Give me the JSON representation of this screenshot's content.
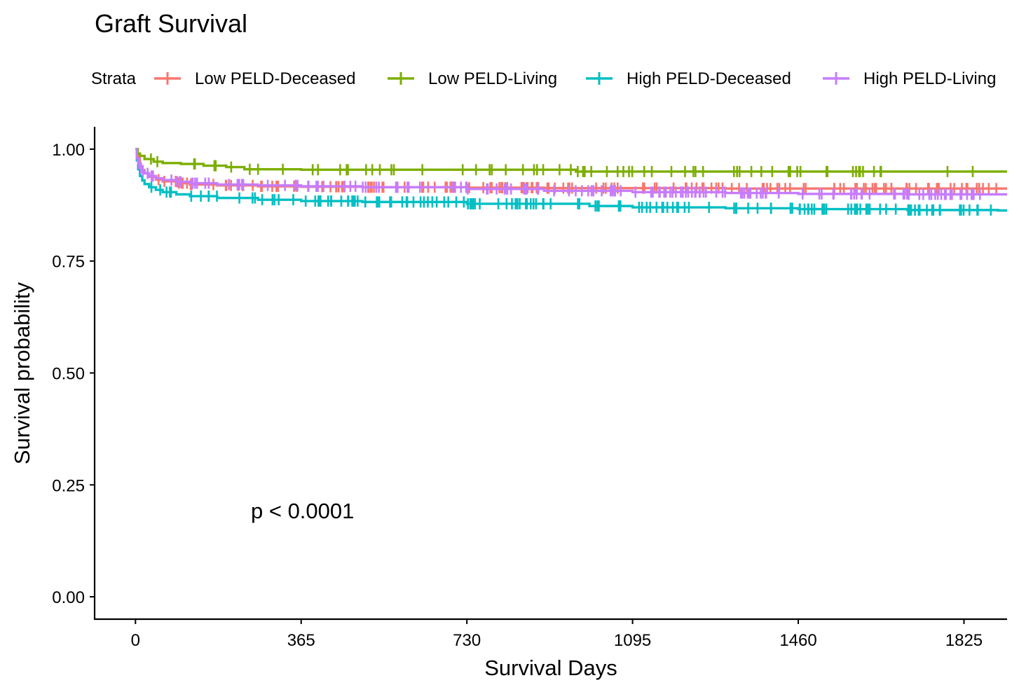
{
  "chart_data": {
    "type": "line",
    "subtype": "kaplan-meier survival curve",
    "title": "Graft Survival",
    "xlabel": "Survival Days",
    "ylabel": "Survival probability",
    "xlim": [
      -90,
      1920
    ],
    "ylim": [
      -0.05,
      1.05
    ],
    "x_ticks": [
      0,
      365,
      730,
      1095,
      1460,
      1825
    ],
    "y_ticks": [
      0.0,
      0.25,
      0.5,
      0.75,
      1.0
    ],
    "y_tick_labels": [
      "0.00",
      "0.25",
      "0.50",
      "0.75",
      "1.00"
    ],
    "grid": false,
    "legend": {
      "title": "Strata",
      "placement": "top",
      "entries": [
        "Low PELD-Deceased",
        "Low PELD-Living",
        "High PELD-Deceased",
        "High PELD-Living"
      ]
    },
    "annotations": [
      {
        "text": "p < 0.0001",
        "x": 390,
        "y": 0.19
      }
    ],
    "series": [
      {
        "name": "Low PELD-Deceased",
        "color": "#F8766D",
        "x": [
          0,
          3,
          6,
          10,
          15,
          20,
          30,
          45,
          60,
          90,
          120,
          180,
          270,
          365,
          500,
          730,
          900,
          1095,
          1300,
          1460,
          1700,
          1900
        ],
        "y": [
          1.0,
          0.985,
          0.972,
          0.962,
          0.953,
          0.946,
          0.938,
          0.932,
          0.928,
          0.924,
          0.921,
          0.919,
          0.917,
          0.916,
          0.915,
          0.914,
          0.913,
          0.913,
          0.912,
          0.912,
          0.912,
          0.912
        ]
      },
      {
        "name": "Low PELD-Living",
        "color": "#7CAE00",
        "x": [
          0,
          5,
          10,
          20,
          40,
          60,
          100,
          150,
          200,
          240,
          365,
          600,
          730,
          970,
          1095,
          1460,
          1900
        ],
        "y": [
          1.0,
          0.99,
          0.985,
          0.978,
          0.972,
          0.969,
          0.967,
          0.963,
          0.96,
          0.955,
          0.954,
          0.954,
          0.954,
          0.95,
          0.95,
          0.95,
          0.95
        ]
      },
      {
        "name": "High PELD-Deceased",
        "color": "#00BFC4",
        "x": [
          0,
          3,
          6,
          10,
          15,
          20,
          30,
          45,
          60,
          90,
          120,
          180,
          270,
          365,
          500,
          730,
          1000,
          1095,
          1300,
          1460,
          1700,
          1900
        ],
        "y": [
          1.0,
          0.975,
          0.955,
          0.94,
          0.93,
          0.922,
          0.915,
          0.909,
          0.904,
          0.899,
          0.895,
          0.891,
          0.887,
          0.884,
          0.882,
          0.878,
          0.873,
          0.87,
          0.868,
          0.866,
          0.864,
          0.863
        ]
      },
      {
        "name": "High PELD-Living",
        "color": "#C77CFF",
        "x": [
          0,
          3,
          6,
          10,
          15,
          20,
          30,
          45,
          60,
          90,
          120,
          180,
          270,
          365,
          500,
          730,
          900,
          1095,
          1300,
          1460,
          1700,
          1900
        ],
        "y": [
          1.0,
          0.98,
          0.968,
          0.958,
          0.951,
          0.946,
          0.94,
          0.935,
          0.931,
          0.927,
          0.924,
          0.921,
          0.919,
          0.917,
          0.915,
          0.911,
          0.907,
          0.904,
          0.902,
          0.9,
          0.899,
          0.899
        ]
      }
    ]
  }
}
